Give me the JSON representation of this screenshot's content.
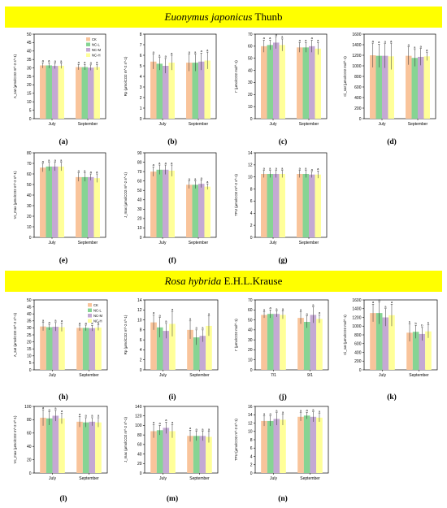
{
  "sections": [
    {
      "species_italic": "Euonymus japonicus",
      "authority": "Thunb"
    },
    {
      "species_italic": "Rosa hybrida",
      "authority": "E.H.L.Krause"
    }
  ],
  "legend": [
    "CK",
    "NC-L",
    "NC-M",
    "NC-H"
  ],
  "colors": {
    "CK": "#f9c49b",
    "NC-L": "#86d493",
    "NC-M": "#c4a9d4",
    "NC-H": "#ffff99",
    "banner": "#ffff00"
  },
  "chart_data": [
    {
      "label": "(a)",
      "type": "bar",
      "ylabel": "A_sat (μmolCO2 m^-2 s^-1)",
      "ylim": [
        0,
        50
      ],
      "yticks": [
        0,
        5,
        10,
        15,
        20,
        25,
        30,
        35,
        40,
        45,
        50
      ],
      "categories": [
        "July",
        "September"
      ],
      "series": [
        {
          "name": "CK",
          "values": [
            31.5,
            30.5
          ]
        },
        {
          "name": "NC-L",
          "values": [
            31.5,
            30.5
          ]
        },
        {
          "name": "NC-M",
          "values": [
            31.2,
            30.2
          ]
        },
        {
          "name": "NC-H",
          "values": [
            31.3,
            30.5
          ]
        }
      ],
      "errors": [
        1.6,
        1.6,
        1.6,
        1.6,
        1.6,
        1.6,
        1.6,
        1.6
      ],
      "letters": [
        "a",
        "a",
        "a",
        "a",
        "a",
        "a",
        "a",
        "a"
      ],
      "legend_position": "top-right"
    },
    {
      "label": "(b)",
      "type": "bar",
      "ylabel": "Rp (μmolCO2 m^-2 s^-1)",
      "ylim": [
        0,
        8
      ],
      "yticks": [
        0,
        1,
        2,
        3,
        4,
        5,
        6,
        7,
        8
      ],
      "categories": [
        "July",
        "September"
      ],
      "series": [
        {
          "name": "CK",
          "values": [
            5.4,
            5.3
          ]
        },
        {
          "name": "NC-L",
          "values": [
            5.2,
            5.3
          ]
        },
        {
          "name": "NC-M",
          "values": [
            5.0,
            5.4
          ]
        },
        {
          "name": "NC-H",
          "values": [
            5.3,
            5.5
          ]
        }
      ],
      "errors": [
        0.7,
        0.6,
        0.7,
        0.7,
        0.8,
        0.8,
        0.8,
        0.8
      ],
      "letters": [
        "a",
        "a",
        "a",
        "a",
        "a",
        "a",
        "a",
        "a"
      ]
    },
    {
      "label": "(c)",
      "type": "bar",
      "ylabel": "Γ (μmolCO2 mol^-1)",
      "ylim": [
        0,
        70
      ],
      "yticks": [
        0,
        10,
        20,
        30,
        40,
        50,
        60,
        70
      ],
      "categories": [
        "July",
        "September"
      ],
      "series": [
        {
          "name": "CK",
          "values": [
            60,
            59
          ]
        },
        {
          "name": "NC-L",
          "values": [
            61,
            59
          ]
        },
        {
          "name": "NC-M",
          "values": [
            63,
            60
          ]
        },
        {
          "name": "NC-H",
          "values": [
            61,
            58
          ]
        }
      ],
      "errors": [
        5,
        4,
        5,
        5,
        4,
        4,
        5,
        5
      ],
      "letters": [
        "a",
        "a",
        "a",
        "a",
        "a",
        "a",
        "a",
        "a"
      ]
    },
    {
      "label": "(d)",
      "type": "bar",
      "ylabel": "Ci_sat (μmolCO2 mol^-1)",
      "ylim": [
        0,
        1600
      ],
      "yticks": [
        0,
        200,
        400,
        600,
        800,
        1000,
        1200,
        1400,
        1600
      ],
      "categories": [
        "July",
        "September"
      ],
      "series": [
        {
          "name": "CK",
          "values": [
            1200,
            1190
          ]
        },
        {
          "name": "NC-L",
          "values": [
            1190,
            1150
          ]
        },
        {
          "name": "NC-M",
          "values": [
            1190,
            1170
          ]
        },
        {
          "name": "NC-H",
          "values": [
            1180,
            1180
          ]
        }
      ],
      "errors": [
        230,
        220,
        230,
        250,
        170,
        160,
        160,
        80
      ],
      "letters": [
        "a",
        "a",
        "a",
        "a",
        "a",
        "a",
        "a",
        "a"
      ]
    },
    {
      "label": "(e)",
      "type": "bar",
      "ylabel": "Vc_max (μmolCO2 m^-2 s^-1)",
      "ylim": [
        0,
        80
      ],
      "yticks": [
        0,
        10,
        20,
        30,
        40,
        50,
        60,
        70,
        80
      ],
      "categories": [
        "July",
        "September"
      ],
      "series": [
        {
          "name": "CK",
          "values": [
            66,
            57
          ]
        },
        {
          "name": "NC-L",
          "values": [
            67,
            57
          ]
        },
        {
          "name": "NC-M",
          "values": [
            67,
            57
          ]
        },
        {
          "name": "NC-H",
          "values": [
            67,
            56
          ]
        }
      ],
      "errors": [
        4,
        4,
        4,
        4,
        4,
        4,
        3,
        4
      ],
      "letters": [
        "a",
        "a",
        "a",
        "a",
        "a",
        "a",
        "a",
        "a"
      ]
    },
    {
      "label": "(f)",
      "type": "bar",
      "ylabel": "J_max (μmolCO2 m^-2 s^-1)",
      "ylim": [
        0,
        90
      ],
      "yticks": [
        0,
        10,
        20,
        30,
        40,
        50,
        60,
        70,
        80,
        90
      ],
      "categories": [
        "July",
        "September"
      ],
      "series": [
        {
          "name": "CK",
          "values": [
            70,
            56
          ]
        },
        {
          "name": "NC-L",
          "values": [
            72,
            56
          ]
        },
        {
          "name": "NC-M",
          "values": [
            72,
            57
          ]
        },
        {
          "name": "NC-H",
          "values": [
            71,
            54
          ]
        }
      ],
      "errors": [
        5,
        5,
        5,
        6,
        4,
        4,
        4,
        3
      ],
      "letters": [
        "a",
        "a",
        "a",
        "a",
        "a",
        "a",
        "a",
        "a"
      ]
    },
    {
      "label": "(g)",
      "type": "bar",
      "ylabel": "TPU (μmolCO2 m^-2 s^-1)",
      "ylim": [
        0,
        14
      ],
      "yticks": [
        0,
        2,
        4,
        6,
        8,
        10,
        12,
        14
      ],
      "categories": [
        "July",
        "September"
      ],
      "series": [
        {
          "name": "CK",
          "values": [
            10.5,
            10.5
          ]
        },
        {
          "name": "NC-L",
          "values": [
            10.5,
            10.5
          ]
        },
        {
          "name": "NC-M",
          "values": [
            10.5,
            10.4
          ]
        },
        {
          "name": "NC-H",
          "values": [
            10.5,
            10.4
          ]
        }
      ],
      "errors": [
        0.6,
        0.6,
        0.6,
        0.6,
        0.6,
        0.6,
        0.5,
        0.6
      ],
      "letters": [
        "a",
        "a",
        "a",
        "a",
        "a",
        "a",
        "a",
        "a"
      ]
    },
    {
      "label": "(h)",
      "type": "bar",
      "ylabel": "A_sat (μmolCO2 m^-2 s^-1)",
      "ylim": [
        0,
        50
      ],
      "yticks": [
        0,
        5,
        10,
        15,
        20,
        25,
        30,
        35,
        40,
        45,
        50
      ],
      "categories": [
        "July",
        "September"
      ],
      "series": [
        {
          "name": "CK",
          "values": [
            31,
            30
          ]
        },
        {
          "name": "NC-L",
          "values": [
            30.5,
            30
          ]
        },
        {
          "name": "NC-M",
          "values": [
            30.8,
            29.8
          ]
        },
        {
          "name": "NC-H",
          "values": [
            30.5,
            30.2
          ]
        }
      ],
      "errors": [
        3,
        2,
        3,
        3,
        2,
        2,
        2,
        2
      ],
      "letters": [
        "a",
        "a",
        "a",
        "a",
        "a",
        "a",
        "a",
        "a"
      ],
      "legend_position": "top-right"
    },
    {
      "label": "(i)",
      "type": "bar",
      "ylabel": "Rp (μmolCO2 m^-2 s^-1)",
      "ylim": [
        0,
        14
      ],
      "yticks": [
        0,
        2,
        4,
        6,
        8,
        10,
        12,
        14
      ],
      "categories": [
        "July",
        "September"
      ],
      "series": [
        {
          "name": "CK",
          "values": [
            9.5,
            8.0
          ]
        },
        {
          "name": "NC-L",
          "values": [
            8.5,
            6.5
          ]
        },
        {
          "name": "NC-M",
          "values": [
            7.8,
            6.8
          ]
        },
        {
          "name": "NC-H",
          "values": [
            9.2,
            8.8
          ]
        }
      ],
      "errors": [
        1.5,
        2.0,
        1.5,
        2.5,
        1.8,
        1.5,
        1.2,
        2.0
      ],
      "letters": [
        "a",
        "a",
        "a",
        "a",
        "a",
        "a",
        "a",
        "a"
      ]
    },
    {
      "label": "(j)",
      "type": "bar",
      "ylabel": "Γ (μmolCO2 mol^-1)",
      "ylim": [
        0,
        70
      ],
      "yticks": [
        0,
        10,
        20,
        30,
        40,
        50,
        60,
        70
      ],
      "categories": [
        "7/1",
        "9/1"
      ],
      "series": [
        {
          "name": "CK",
          "values": [
            55,
            52
          ]
        },
        {
          "name": "NC-L",
          "values": [
            56,
            48
          ]
        },
        {
          "name": "NC-M",
          "values": [
            56,
            55
          ]
        },
        {
          "name": "NC-H",
          "values": [
            55,
            51
          ]
        }
      ],
      "errors": [
        3,
        4,
        3,
        4,
        6,
        6,
        8,
        4
      ],
      "letters": [
        "a",
        "a",
        "a",
        "a",
        "a",
        "a",
        "a",
        "a"
      ]
    },
    {
      "label": "(k)",
      "type": "bar",
      "ylabel": "Ci_sat (μmolCO2 mol^-1)",
      "ylim": [
        0,
        1600
      ],
      "yticks": [
        0,
        200,
        400,
        600,
        800,
        1000,
        1200,
        1400,
        1600
      ],
      "categories": [
        "July",
        "September"
      ],
      "series": [
        {
          "name": "CK",
          "values": [
            1300,
            850
          ]
        },
        {
          "name": "NC-L",
          "values": [
            1300,
            870
          ]
        },
        {
          "name": "NC-M",
          "values": [
            1200,
            820
          ]
        },
        {
          "name": "NC-H",
          "values": [
            1250,
            880
          ]
        }
      ],
      "errors": [
        200,
        250,
        200,
        250,
        200,
        150,
        150,
        150
      ],
      "letters": [
        "a",
        "a",
        "a",
        "a",
        "b",
        "b",
        "b",
        "b"
      ]
    },
    {
      "label": "(l)",
      "type": "bar",
      "ylabel": "Vc_max (μmolCO2 m^-2 s^-1)",
      "ylim": [
        0,
        100
      ],
      "yticks": [
        0,
        20,
        40,
        60,
        80,
        100
      ],
      "categories": [
        "July",
        "September"
      ],
      "series": [
        {
          "name": "CK",
          "values": [
            83,
            77
          ]
        },
        {
          "name": "NC-L",
          "values": [
            82,
            76
          ]
        },
        {
          "name": "NC-M",
          "values": [
            86,
            77
          ]
        },
        {
          "name": "NC-H",
          "values": [
            82,
            76
          ]
        }
      ],
      "errors": [
        12,
        10,
        8,
        8,
        8,
        7,
        6,
        7
      ],
      "letters": [
        "a",
        "a",
        "a",
        "a",
        "a",
        "a",
        "a",
        "a"
      ]
    },
    {
      "label": "(m)",
      "type": "bar",
      "ylabel": "J_max (μmolCO2 m^-2 s^-1)",
      "ylim": [
        0,
        140
      ],
      "yticks": [
        0,
        20,
        40,
        60,
        80,
        100,
        120,
        140
      ],
      "categories": [
        "July",
        "September"
      ],
      "series": [
        {
          "name": "CK",
          "values": [
            88,
            78
          ]
        },
        {
          "name": "NC-L",
          "values": [
            90,
            78
          ]
        },
        {
          "name": "NC-M",
          "values": [
            95,
            78
          ]
        },
        {
          "name": "NC-H",
          "values": [
            88,
            76
          ]
        }
      ],
      "errors": [
        14,
        10,
        12,
        14,
        12,
        10,
        10,
        12
      ],
      "letters": [
        "a",
        "a",
        "a",
        "a",
        "a",
        "a",
        "a",
        "a"
      ]
    },
    {
      "label": "(n)",
      "type": "bar",
      "ylabel": "TPU (μmolCO2 m^-2 s^-1)",
      "ylim": [
        0,
        16
      ],
      "yticks": [
        0,
        2,
        4,
        6,
        8,
        10,
        12,
        14,
        16
      ],
      "categories": [
        "July",
        "September"
      ],
      "series": [
        {
          "name": "CK",
          "values": [
            12.5,
            13.5
          ]
        },
        {
          "name": "NC-L",
          "values": [
            12.5,
            13.8
          ]
        },
        {
          "name": "NC-M",
          "values": [
            13.0,
            13.5
          ]
        },
        {
          "name": "NC-H",
          "values": [
            12.8,
            13.3
          ]
        }
      ],
      "errors": [
        1.2,
        1.2,
        1.5,
        1.3,
        1.0,
        0.8,
        1.2,
        1.0
      ],
      "letters": [
        "a",
        "a",
        "a",
        "a",
        "a",
        "a",
        "a",
        "a"
      ]
    }
  ]
}
